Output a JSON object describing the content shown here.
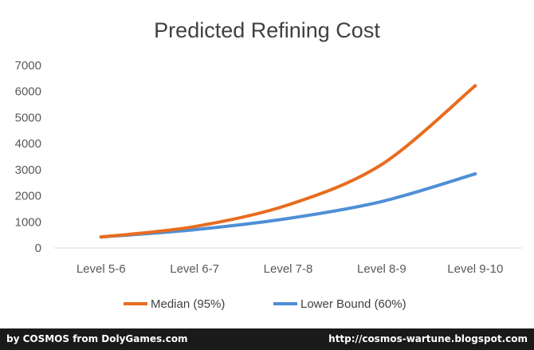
{
  "chart_data": {
    "type": "line",
    "title": "Predicted Refining Cost",
    "xlabel": "",
    "ylabel": "",
    "categories": [
      "Level 5-6",
      "Level 6-7",
      "Level 7-8",
      "Level 8-9",
      "Level 9-10"
    ],
    "ylim": [
      0,
      7000
    ],
    "yticks": [
      0,
      1000,
      2000,
      3000,
      4000,
      5000,
      6000,
      7000
    ],
    "grid": false,
    "legend_position": "bottom",
    "series": [
      {
        "name": "Median (95%)",
        "color": "#e86c1f",
        "values": [
          420,
          820,
          1650,
          3200,
          6220
        ]
      },
      {
        "name": "Lower Bound (60%)",
        "color": "#4f8fd6",
        "values": [
          420,
          700,
          1130,
          1780,
          2840
        ]
      }
    ]
  },
  "footer": {
    "left_text": "by COSMOS from DolyGames.com",
    "right_text": "http://cosmos-wartune.blogspot.com"
  }
}
